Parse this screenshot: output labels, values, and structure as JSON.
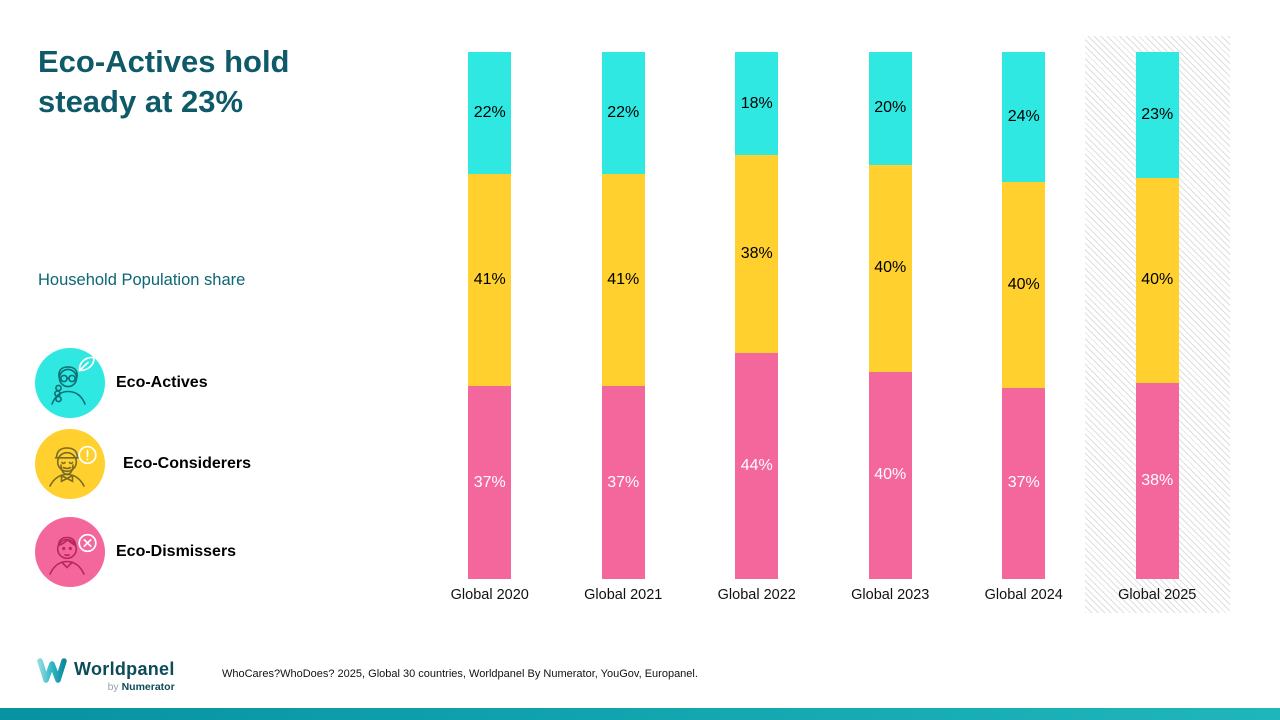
{
  "title": {
    "line1": "Eco-Actives hold",
    "line2": "steady at 23%"
  },
  "subtitle": "Household Population share",
  "legend": {
    "items": [
      {
        "label": "Eco-Actives",
        "color": "#2ee8e1",
        "icon": "eco-actives-avatar-icon"
      },
      {
        "label": "Eco-Considerers",
        "color": "#ffd02e",
        "icon": "eco-considerers-avatar-icon"
      },
      {
        "label": "Eco-Dismissers",
        "color": "#f4679d",
        "icon": "eco-dismissers-avatar-icon"
      }
    ]
  },
  "chart_data": {
    "type": "bar",
    "stacked": true,
    "unit": "%",
    "categories": [
      "Global 2020",
      "Global 2021",
      "Global 2022",
      "Global 2023",
      "Global 2024",
      "Global 2025"
    ],
    "series": [
      {
        "name": "Eco-Actives",
        "color": "#2ee8e1",
        "label_color": "#000000",
        "values": [
          22,
          22,
          18,
          20,
          24,
          23
        ]
      },
      {
        "name": "Eco-Considerers",
        "color": "#ffd02e",
        "label_color": "#000000",
        "values": [
          41,
          41,
          38,
          40,
          40,
          40
        ]
      },
      {
        "name": "Eco-Dismissers",
        "color": "#f4679d",
        "label_color": "#ffffff",
        "values": [
          37,
          37,
          44,
          40,
          37,
          38
        ]
      }
    ],
    "stack_order_top_to_bottom": [
      "Eco-Actives",
      "Eco-Considerers",
      "Eco-Dismissers"
    ],
    "value_labels": "inside-center",
    "highlighted_category": "Global 2025",
    "highlight_style": "diagonal-hatch-background",
    "axes": {
      "y_axis_hidden": true,
      "x_labels_shown": true
    },
    "ylim": [
      0,
      100
    ]
  },
  "footer": {
    "logo": {
      "brand": "Worldpanel",
      "byline_prefix": "by",
      "byline_brand": "Numerator"
    },
    "source": "WhoCares?WhoDoes? 2025, Global 30 countries, Worldpanel By Numerator, YouGov, Europanel."
  },
  "colors": {
    "title_teal": "#0e5a68",
    "subtitle_teal": "#0c6675",
    "eco_actives_cyan": "#2ee8e1",
    "eco_considerers_yellow": "#ffd02e",
    "eco_dismissers_pink": "#f4679d",
    "hatch_gray": "#dedede",
    "bottom_bar_teal": "#13a7b0"
  }
}
